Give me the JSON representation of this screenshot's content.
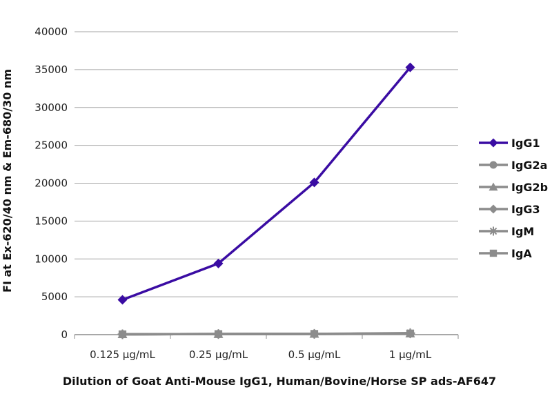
{
  "chart_data": {
    "type": "line",
    "ylabel": "FI at Ex-620/40 nm & Em-680/30 nm",
    "xlabel": "Dilution of Goat Anti-Mouse IgG1, Human/Bovine/Horse SP ads-AF647",
    "categories": [
      "0.125 µg/mL",
      "0.25 µg/mL",
      "0.5 µg/mL",
      "1 µg/mL"
    ],
    "ylim": [
      0,
      40000
    ],
    "yticks": [
      "0",
      "5000",
      "10000",
      "15000",
      "20000",
      "25000",
      "30000",
      "35000",
      "40000"
    ],
    "grid": true,
    "legend": "right",
    "series": [
      {
        "name": "IgG1",
        "color": "#3a0ca3",
        "marker": "diamond",
        "values": [
          4600,
          9400,
          20100,
          35300
        ]
      },
      {
        "name": "IgG2a",
        "color": "#8c8c8c",
        "marker": "circle",
        "values": [
          50,
          80,
          100,
          150
        ]
      },
      {
        "name": "IgG2b",
        "color": "#8c8c8c",
        "marker": "triangle",
        "values": [
          50,
          80,
          100,
          150
        ]
      },
      {
        "name": "IgG3",
        "color": "#8c8c8c",
        "marker": "diamond",
        "values": [
          50,
          80,
          100,
          150
        ]
      },
      {
        "name": "IgM",
        "color": "#8c8c8c",
        "marker": "star",
        "values": [
          50,
          80,
          100,
          200
        ]
      },
      {
        "name": "IgA",
        "color": "#8c8c8c",
        "marker": "square",
        "values": [
          50,
          80,
          100,
          150
        ]
      }
    ]
  }
}
